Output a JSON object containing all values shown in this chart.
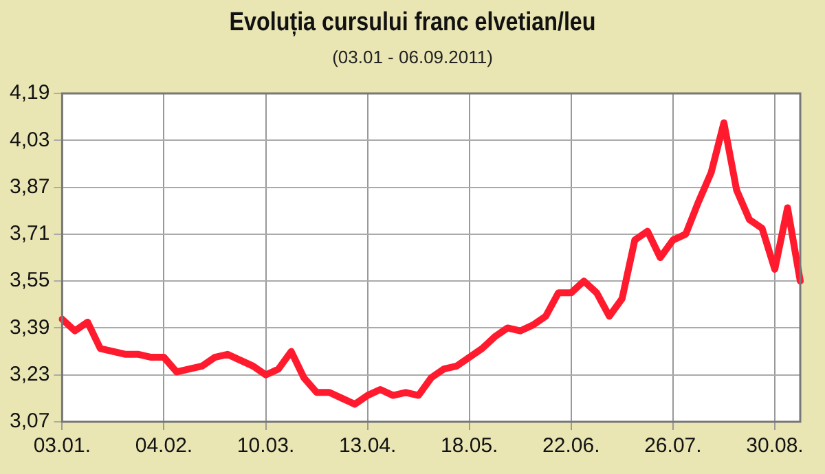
{
  "chart_data": {
    "type": "line",
    "title": "Evoluția cursului franc elvetian/leu",
    "subtitle": "(03.01 - 06.09.2011)",
    "categories": [
      "03.01.",
      null,
      null,
      null,
      null,
      null,
      null,
      null,
      "04.02.",
      null,
      null,
      null,
      null,
      null,
      null,
      null,
      "10.03.",
      null,
      null,
      null,
      null,
      null,
      null,
      null,
      "13.04.",
      null,
      null,
      null,
      null,
      null,
      null,
      null,
      "18.05.",
      null,
      null,
      null,
      null,
      null,
      null,
      null,
      "22.06.",
      null,
      null,
      null,
      null,
      null,
      null,
      null,
      "26.07.",
      null,
      null,
      null,
      null,
      null,
      null,
      null,
      "30.08.",
      null,
      null
    ],
    "series": [
      {
        "color": "#ff1a2e",
        "values": [
          3.42,
          3.38,
          3.41,
          3.32,
          3.31,
          3.3,
          3.3,
          3.29,
          3.29,
          3.24,
          3.25,
          3.26,
          3.29,
          3.3,
          3.28,
          3.26,
          3.23,
          3.25,
          3.31,
          3.22,
          3.17,
          3.17,
          3.15,
          3.13,
          3.16,
          3.18,
          3.16,
          3.17,
          3.16,
          3.22,
          3.25,
          3.26,
          3.29,
          3.32,
          3.36,
          3.39,
          3.38,
          3.4,
          3.43,
          3.51,
          3.51,
          3.55,
          3.51,
          3.43,
          3.49,
          3.69,
          3.72,
          3.63,
          3.69,
          3.71,
          3.82,
          3.92,
          4.09,
          3.86,
          3.76,
          3.73,
          3.59,
          3.8,
          3.55
        ]
      }
    ],
    "ylim": [
      3.07,
      4.19
    ],
    "yticks": [
      {
        "value": 3.07,
        "label": "3,07"
      },
      {
        "value": 3.23,
        "label": "3,23"
      },
      {
        "value": 3.39,
        "label": "3,39"
      },
      {
        "value": 3.55,
        "label": "3,55"
      },
      {
        "value": 3.71,
        "label": "3,71"
      },
      {
        "value": 3.87,
        "label": "3,87"
      },
      {
        "value": 4.03,
        "label": "4,03"
      },
      {
        "value": 4.19,
        "label": "4,19"
      }
    ],
    "grid": true,
    "legend": false,
    "marker": "none",
    "line_style": "solid"
  }
}
